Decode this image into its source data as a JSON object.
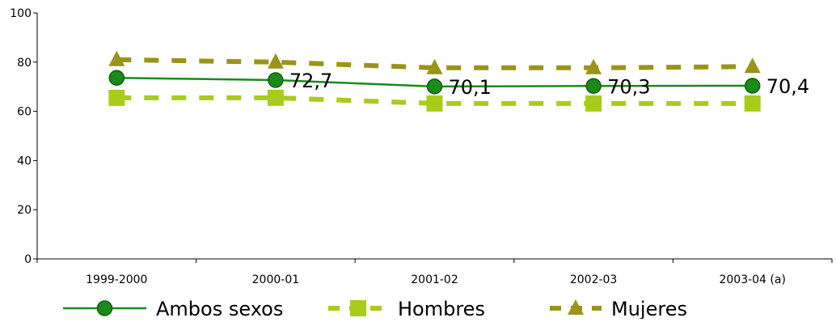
{
  "chart_data": {
    "type": "line",
    "title": "",
    "xlabel": "",
    "ylabel": "",
    "categories": [
      "1999-2000",
      "2000-01",
      "2001-02",
      "2002-03",
      "2003-04 (a)"
    ],
    "ylim": [
      0,
      100
    ],
    "yticks": [
      "0",
      "20",
      "40",
      "60",
      "80",
      "100"
    ],
    "grid": false,
    "legend_position": "bottom",
    "series": [
      {
        "name": "Ambos sexos",
        "values": [
          73.6,
          72.7,
          70.1,
          70.3,
          70.4
        ],
        "data_labels": [
          "",
          "72,7",
          "70,1",
          "70,3",
          "70,4"
        ],
        "color": "#1a8a1a",
        "marker": "circle",
        "line_style": "solid"
      },
      {
        "name": "Hombres",
        "values": [
          65.5,
          65.5,
          63.2,
          63.2,
          63.2
        ],
        "data_labels": [],
        "color": "#a8cc1a",
        "marker": "square",
        "line_style": "dashed"
      },
      {
        "name": "Mujeres",
        "values": [
          81.0,
          80.0,
          77.7,
          77.7,
          78.2
        ],
        "data_labels": [],
        "color": "#9a9418",
        "marker": "triangle",
        "line_style": "dashed"
      }
    ]
  }
}
